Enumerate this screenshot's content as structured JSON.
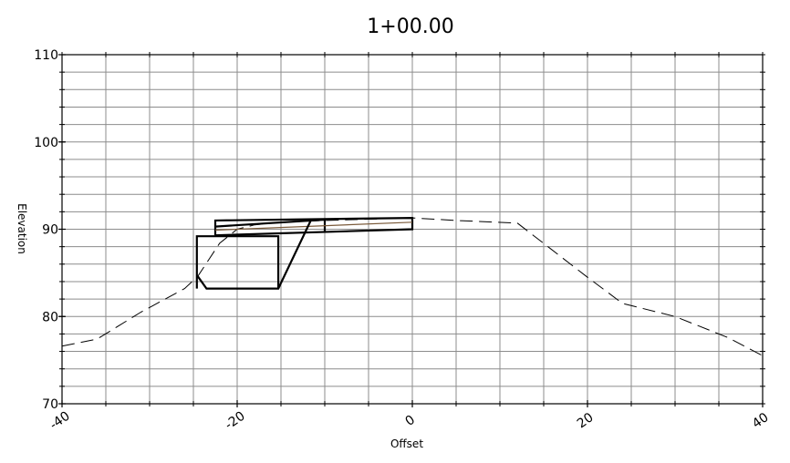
{
  "chart_data": {
    "type": "line",
    "title": "1+00.00",
    "xlabel": "Offset",
    "ylabel": "Elevation",
    "xlim": [
      -40,
      40
    ],
    "ylim": [
      70,
      110
    ],
    "x_ticks": [
      -40,
      -20,
      0,
      20,
      40
    ],
    "y_ticks": [
      70,
      80,
      90,
      100,
      110
    ],
    "x_tick_labels": [
      "-40",
      "-20",
      "0",
      "20",
      "40"
    ],
    "y_tick_labels": [
      "70",
      "80",
      "90",
      "100",
      "110"
    ],
    "grid": true,
    "series": [
      {
        "style": "dashed",
        "color": "#000000",
        "points": [
          [
            -40,
            76.6
          ],
          [
            -36,
            77.4
          ],
          [
            -31,
            80.5
          ],
          [
            -26,
            83.2
          ],
          [
            -24.5,
            84.6
          ],
          [
            -22,
            88.4
          ],
          [
            -20,
            90
          ],
          [
            -18,
            90.5
          ],
          [
            -15,
            90.8
          ],
          [
            -10,
            91
          ],
          [
            0,
            91.3
          ],
          [
            5,
            91
          ],
          [
            12,
            90.7
          ],
          [
            20,
            84.5
          ],
          [
            24,
            81.5
          ],
          [
            30,
            80
          ],
          [
            36,
            77.6
          ],
          [
            40,
            75.5
          ]
        ]
      },
      {
        "style": "solid",
        "color": "#000000",
        "points": [
          [
            -22.5,
            89.3
          ],
          [
            -22.5,
            91
          ],
          [
            0,
            91.3
          ],
          [
            0,
            90
          ],
          [
            -22.5,
            89.3
          ]
        ]
      },
      {
        "style": "solid",
        "color": "#000000",
        "points": [
          [
            -22.5,
            90.3
          ],
          [
            -10,
            91.1
          ],
          [
            -10,
            89.7
          ]
        ]
      },
      {
        "style": "solid",
        "color": "#7a5a3a",
        "points": [
          [
            -22.5,
            89.9
          ],
          [
            0,
            90.8
          ]
        ]
      },
      {
        "style": "solid",
        "color": "#000000",
        "points": [
          [
            -24.6,
            84.6
          ],
          [
            -24.6,
            84.6
          ],
          [
            -24.6,
            84.6
          ]
        ]
      },
      {
        "style": "solid",
        "color": "#000000",
        "points": [
          [
            -24.5,
            84.6
          ],
          [
            -23.5,
            83.2
          ],
          [
            -15.3,
            83.2
          ],
          [
            -11.5,
            91.2
          ]
        ]
      },
      {
        "style": "solid",
        "color": "#000000",
        "points": [
          [
            -15.3,
            83.2
          ],
          [
            -15.3,
            89.2
          ],
          [
            -24.6,
            89.2
          ],
          [
            -24.6,
            83.2
          ]
        ]
      }
    ]
  }
}
